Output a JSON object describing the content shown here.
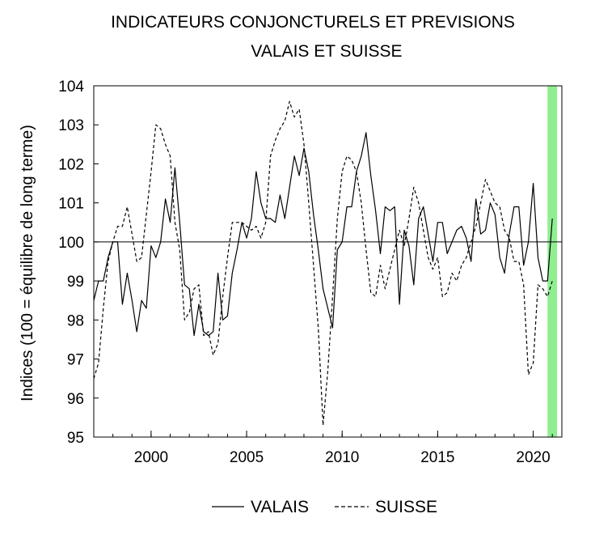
{
  "chart_data": {
    "type": "line",
    "title": "INDICATEURS CONJONCTURELS ET PREVISIONS",
    "subtitle": "VALAIS ET SUISSE",
    "xlabel": "",
    "ylabel": "Indices (100 = équilibre de long terme)",
    "xlim": [
      1997.0,
      2021.5
    ],
    "ylim": [
      95,
      104
    ],
    "y_ticks": [
      95,
      96,
      97,
      98,
      99,
      100,
      101,
      102,
      103,
      104
    ],
    "x_ticks": [
      2000,
      2005,
      2010,
      2015,
      2020
    ],
    "grid": false,
    "reference_line": 100,
    "forecast_band": {
      "from": 2020.75,
      "to": 2021.25,
      "color": "#90EE90"
    },
    "legend_position": "bottom",
    "series": [
      {
        "name": "VALAIS",
        "style": "solid",
        "color": "#000000",
        "x": [
          1997.0,
          1997.25,
          1997.5,
          1997.75,
          1998.0,
          1998.25,
          1998.5,
          1998.75,
          1999.0,
          1999.25,
          1999.5,
          1999.75,
          2000.0,
          2000.25,
          2000.5,
          2000.75,
          2001.0,
          2001.25,
          2001.5,
          2001.75,
          2002.0,
          2002.25,
          2002.5,
          2002.75,
          2003.0,
          2003.25,
          2003.5,
          2003.75,
          2004.0,
          2004.25,
          2004.5,
          2004.75,
          2005.0,
          2005.25,
          2005.5,
          2005.75,
          2006.0,
          2006.25,
          2006.5,
          2006.75,
          2007.0,
          2007.25,
          2007.5,
          2007.75,
          2008.0,
          2008.25,
          2008.5,
          2008.75,
          2009.0,
          2009.25,
          2009.5,
          2009.75,
          2010.0,
          2010.25,
          2010.5,
          2010.75,
          2011.0,
          2011.25,
          2011.5,
          2011.75,
          2012.0,
          2012.25,
          2012.5,
          2012.75,
          2013.0,
          2013.25,
          2013.5,
          2013.75,
          2014.0,
          2014.25,
          2014.5,
          2014.75,
          2015.0,
          2015.25,
          2015.5,
          2015.75,
          2016.0,
          2016.25,
          2016.5,
          2016.75,
          2017.0,
          2017.25,
          2017.5,
          2017.75,
          2018.0,
          2018.25,
          2018.5,
          2018.75,
          2019.0,
          2019.25,
          2019.5,
          2019.75,
          2020.0,
          2020.25,
          2020.5,
          2020.75,
          2021.0
        ],
        "values": [
          98.5,
          99.0,
          99.0,
          99.6,
          100.0,
          100.0,
          98.4,
          99.2,
          98.5,
          97.7,
          98.5,
          98.3,
          99.9,
          99.6,
          100.0,
          101.1,
          100.5,
          101.9,
          100.5,
          98.9,
          98.8,
          97.6,
          98.4,
          97.7,
          97.6,
          97.7,
          99.2,
          98.0,
          98.1,
          99.2,
          99.8,
          100.5,
          100.1,
          100.6,
          101.8,
          101.0,
          100.6,
          100.6,
          100.5,
          101.2,
          100.6,
          101.4,
          102.2,
          101.7,
          102.4,
          101.8,
          100.7,
          99.8,
          98.8,
          98.3,
          97.8,
          99.8,
          100.0,
          100.9,
          100.9,
          101.8,
          102.2,
          102.8,
          101.7,
          100.8,
          99.7,
          100.9,
          100.8,
          100.9,
          98.4,
          100.3,
          99.9,
          98.9,
          100.6,
          100.9,
          100.2,
          99.5,
          100.5,
          100.5,
          99.7,
          100.0,
          100.3,
          100.4,
          100.1,
          99.5,
          101.1,
          100.2,
          100.3,
          101.0,
          100.7,
          99.6,
          99.2,
          100.2,
          100.9,
          100.9,
          99.4,
          100.0,
          101.5,
          99.6,
          99.0,
          99.0,
          100.6
        ]
      },
      {
        "name": "SUISSE",
        "style": "dashed",
        "color": "#000000",
        "x": [
          1997.0,
          1997.25,
          1997.5,
          1997.75,
          1998.0,
          1998.25,
          1998.5,
          1998.75,
          1999.0,
          1999.25,
          1999.5,
          1999.75,
          2000.0,
          2000.25,
          2000.5,
          2000.75,
          2001.0,
          2001.25,
          2001.5,
          2001.75,
          2002.0,
          2002.25,
          2002.5,
          2002.75,
          2003.0,
          2003.25,
          2003.5,
          2003.75,
          2004.0,
          2004.25,
          2004.5,
          2004.75,
          2005.0,
          2005.25,
          2005.5,
          2005.75,
          2006.0,
          2006.25,
          2006.5,
          2006.75,
          2007.0,
          2007.25,
          2007.5,
          2007.75,
          2008.0,
          2008.25,
          2008.5,
          2008.75,
          2009.0,
          2009.25,
          2009.5,
          2009.75,
          2010.0,
          2010.25,
          2010.5,
          2010.75,
          2011.0,
          2011.25,
          2011.5,
          2011.75,
          2012.0,
          2012.25,
          2012.5,
          2012.75,
          2013.0,
          2013.25,
          2013.5,
          2013.75,
          2014.0,
          2014.25,
          2014.5,
          2014.75,
          2015.0,
          2015.25,
          2015.5,
          2015.75,
          2016.0,
          2016.25,
          2016.5,
          2016.75,
          2017.0,
          2017.25,
          2017.5,
          2017.75,
          2018.0,
          2018.25,
          2018.5,
          2018.75,
          2019.0,
          2019.25,
          2019.5,
          2019.75,
          2020.0,
          2020.25,
          2020.5,
          2020.75,
          2021.0
        ],
        "values": [
          96.5,
          96.9,
          98.3,
          99.5,
          100.0,
          100.4,
          100.4,
          100.9,
          100.2,
          99.5,
          99.6,
          100.7,
          101.8,
          103.0,
          102.9,
          102.5,
          102.2,
          100.5,
          99.8,
          98.0,
          98.2,
          98.8,
          98.9,
          97.6,
          97.7,
          97.1,
          97.4,
          98.6,
          99.6,
          100.5,
          100.5,
          100.5,
          100.4,
          100.3,
          100.4,
          100.1,
          100.5,
          102.2,
          102.6,
          102.9,
          103.1,
          103.6,
          103.2,
          103.4,
          102.5,
          101.0,
          99.4,
          97.8,
          95.3,
          96.7,
          98.6,
          100.6,
          101.8,
          102.2,
          102.1,
          101.8,
          101.0,
          99.8,
          98.7,
          98.6,
          99.4,
          98.8,
          99.3,
          99.8,
          100.3,
          99.9,
          100.6,
          101.4,
          101.0,
          100.3,
          99.6,
          99.3,
          99.6,
          98.6,
          98.7,
          99.2,
          99.0,
          99.4,
          99.6,
          100.0,
          100.4,
          101.0,
          101.6,
          101.3,
          101.0,
          100.9,
          100.3,
          100.1,
          99.5,
          99.5,
          98.9,
          96.6,
          96.9,
          98.9,
          98.8,
          98.6,
          99.0
        ]
      }
    ]
  }
}
